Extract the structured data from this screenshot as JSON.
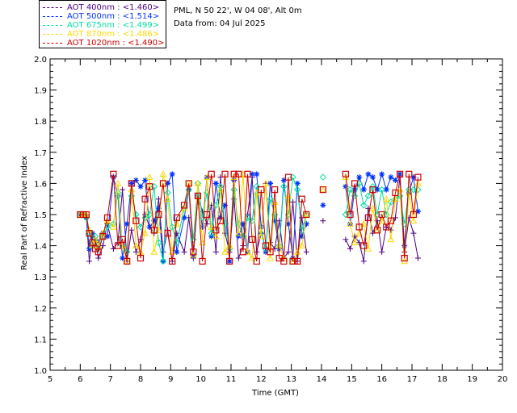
{
  "header": {
    "location": "PML, N 50 22', W 04 08', Alt 0m",
    "data_from": "Data from: 04 Jul 2025"
  },
  "legend": [
    {
      "label": "AOT  400nm : <1.460>",
      "color": "#4b0082"
    },
    {
      "label": "AOT  500nm : <1.514>",
      "color": "#0033ff"
    },
    {
      "label": "AOT  675nm : <1.499>",
      "color": "#00e0a0"
    },
    {
      "label": "AOT  870nm : <1.486>",
      "color": "#ffd700"
    },
    {
      "label": "AOT 1020nm : <1.490>",
      "color": "#cc0000"
    }
  ],
  "chart_data": {
    "type": "line",
    "xlabel": "Time (GMT)",
    "ylabel": "Real Part of Refractive Index",
    "xlim": [
      5,
      20
    ],
    "ylim": [
      1.0,
      2.0
    ],
    "xticks": [
      "5",
      "6",
      "7",
      "8",
      "9",
      "10",
      "11",
      "12",
      "13",
      "14",
      "15",
      "16",
      "17",
      "18",
      "19",
      "20"
    ],
    "yticks": [
      "1.0",
      "1.1",
      "1.2",
      "1.3",
      "1.4",
      "1.5",
      "1.6",
      "1.7",
      "1.8",
      "1.9",
      "2.0"
    ],
    "series": [
      {
        "name": "AOT  400nm",
        "color": "#4b0082",
        "marker": "plus",
        "x": [
          6.0,
          6.1,
          6.2,
          6.3,
          6.4,
          6.5,
          6.6,
          6.75,
          6.9,
          7.1,
          7.25,
          7.4,
          7.55,
          7.7,
          7.85,
          8.0,
          8.15,
          8.3,
          8.45,
          8.6,
          8.75,
          8.9,
          9.05,
          9.2,
          9.45,
          9.6,
          9.75,
          9.9,
          10.05,
          10.2,
          10.35,
          10.5,
          10.65,
          10.8,
          10.95,
          11.1,
          11.25,
          11.4,
          11.55,
          11.7,
          11.85,
          12.0,
          12.15,
          12.3,
          12.45,
          12.6,
          12.75,
          12.9,
          13.05,
          13.2,
          13.35,
          13.5,
          14.05,
          14.8,
          14.95,
          15.1,
          15.25,
          15.4,
          15.55,
          15.7,
          15.85,
          16.0,
          16.15,
          16.3,
          16.45,
          16.6,
          16.75,
          16.9,
          17.05,
          17.2
        ],
        "y": [
          1.5,
          1.5,
          1.5,
          1.35,
          1.43,
          1.42,
          1.36,
          1.4,
          1.47,
          1.39,
          1.41,
          1.58,
          1.35,
          1.45,
          1.38,
          1.42,
          1.5,
          1.46,
          1.44,
          1.55,
          1.38,
          1.45,
          1.35,
          1.44,
          1.38,
          1.49,
          1.36,
          1.56,
          1.51,
          1.47,
          1.53,
          1.38,
          1.62,
          1.44,
          1.38,
          1.55,
          1.36,
          1.4,
          1.5,
          1.62,
          1.38,
          1.44,
          1.6,
          1.41,
          1.39,
          1.48,
          1.36,
          1.38,
          1.54,
          1.35,
          1.49,
          1.38,
          1.48,
          1.42,
          1.39,
          1.43,
          1.41,
          1.35,
          1.52,
          1.44,
          1.48,
          1.38,
          1.46,
          1.45,
          1.49,
          1.62,
          1.38,
          1.49,
          1.44,
          1.36
        ]
      },
      {
        "name": "AOT  500nm",
        "color": "#0033ff",
        "marker": "asterisk",
        "x": [
          6.0,
          6.1,
          6.2,
          6.3,
          6.4,
          6.5,
          6.6,
          6.75,
          6.9,
          7.1,
          7.25,
          7.4,
          7.55,
          7.7,
          7.85,
          8.0,
          8.15,
          8.3,
          8.45,
          8.6,
          8.75,
          8.9,
          9.05,
          9.2,
          9.45,
          9.6,
          9.75,
          9.9,
          10.05,
          10.2,
          10.35,
          10.5,
          10.65,
          10.8,
          10.95,
          11.1,
          11.25,
          11.4,
          11.55,
          11.7,
          11.85,
          12.0,
          12.15,
          12.3,
          12.45,
          12.6,
          12.75,
          12.9,
          13.05,
          13.2,
          13.35,
          13.5,
          14.05,
          14.8,
          14.95,
          15.1,
          15.25,
          15.4,
          15.55,
          15.7,
          15.85,
          16.0,
          16.15,
          16.3,
          16.45,
          16.6,
          16.75,
          16.9,
          17.05,
          17.2
        ],
        "y": [
          1.5,
          1.5,
          1.49,
          1.39,
          1.44,
          1.42,
          1.41,
          1.44,
          1.43,
          1.62,
          1.56,
          1.36,
          1.47,
          1.6,
          1.61,
          1.59,
          1.61,
          1.46,
          1.48,
          1.52,
          1.35,
          1.6,
          1.63,
          1.38,
          1.49,
          1.58,
          1.37,
          1.56,
          1.46,
          1.62,
          1.43,
          1.6,
          1.49,
          1.53,
          1.35,
          1.61,
          1.43,
          1.47,
          1.38,
          1.63,
          1.63,
          1.46,
          1.38,
          1.6,
          1.48,
          1.39,
          1.61,
          1.47,
          1.36,
          1.6,
          1.43,
          1.47,
          1.53,
          1.59,
          1.47,
          1.58,
          1.62,
          1.58,
          1.63,
          1.62,
          1.58,
          1.63,
          1.58,
          1.62,
          1.61,
          1.63,
          1.4,
          1.57,
          1.62,
          1.51
        ]
      },
      {
        "name": "AOT  675nm",
        "color": "#00e0a0",
        "marker": "diamond",
        "x": [
          6.0,
          6.1,
          6.2,
          6.3,
          6.4,
          6.5,
          6.6,
          6.75,
          6.9,
          7.1,
          7.25,
          7.4,
          7.55,
          7.7,
          7.85,
          8.0,
          8.15,
          8.3,
          8.45,
          8.6,
          8.75,
          8.9,
          9.05,
          9.2,
          9.45,
          9.6,
          9.75,
          9.9,
          10.05,
          10.2,
          10.35,
          10.5,
          10.65,
          10.8,
          10.95,
          11.1,
          11.25,
          11.4,
          11.55,
          11.7,
          11.85,
          12.0,
          12.15,
          12.3,
          12.45,
          12.6,
          12.75,
          12.9,
          13.05,
          13.2,
          13.35,
          13.5,
          14.05,
          14.8,
          14.95,
          15.1,
          15.25,
          15.4,
          15.55,
          15.7,
          15.85,
          16.0,
          16.15,
          16.3,
          16.45,
          16.6,
          16.75,
          16.9,
          17.05,
          17.2
        ],
        "y": [
          1.5,
          1.5,
          1.49,
          1.44,
          1.4,
          1.43,
          1.39,
          1.43,
          1.46,
          1.47,
          1.57,
          1.4,
          1.38,
          1.56,
          1.5,
          1.46,
          1.49,
          1.5,
          1.59,
          1.41,
          1.35,
          1.57,
          1.46,
          1.41,
          1.52,
          1.58,
          1.42,
          1.6,
          1.49,
          1.57,
          1.44,
          1.53,
          1.59,
          1.47,
          1.39,
          1.58,
          1.47,
          1.43,
          1.49,
          1.48,
          1.59,
          1.44,
          1.39,
          1.55,
          1.5,
          1.4,
          1.59,
          1.5,
          1.62,
          1.58,
          1.45,
          1.5,
          1.62,
          1.5,
          1.58,
          1.56,
          1.6,
          1.53,
          1.56,
          1.59,
          1.5,
          1.58,
          1.5,
          1.54,
          1.55,
          1.56,
          1.47,
          1.58,
          1.58,
          1.58
        ]
      },
      {
        "name": "AOT  870nm",
        "color": "#ffd700",
        "marker": "triangle",
        "x": [
          6.0,
          6.1,
          6.2,
          6.3,
          6.4,
          6.5,
          6.6,
          6.75,
          6.9,
          7.1,
          7.25,
          7.4,
          7.55,
          7.7,
          7.85,
          8.0,
          8.15,
          8.3,
          8.45,
          8.6,
          8.75,
          8.9,
          9.05,
          9.2,
          9.45,
          9.6,
          9.75,
          9.9,
          10.05,
          10.2,
          10.35,
          10.5,
          10.65,
          10.8,
          10.95,
          11.1,
          11.25,
          11.4,
          11.55,
          11.7,
          11.85,
          12.0,
          12.15,
          12.3,
          12.45,
          12.6,
          12.75,
          12.9,
          13.05,
          13.2,
          13.35,
          13.5,
          14.05,
          14.8,
          14.95,
          15.1,
          15.25,
          15.4,
          15.55,
          15.7,
          15.85,
          16.0,
          16.15,
          16.3,
          16.45,
          16.6,
          16.75,
          16.9,
          17.05,
          17.2
        ],
        "y": [
          1.5,
          1.5,
          1.5,
          1.45,
          1.4,
          1.42,
          1.4,
          1.44,
          1.48,
          1.46,
          1.6,
          1.4,
          1.35,
          1.58,
          1.4,
          1.38,
          1.44,
          1.62,
          1.38,
          1.45,
          1.63,
          1.55,
          1.38,
          1.47,
          1.52,
          1.6,
          1.37,
          1.6,
          1.41,
          1.62,
          1.46,
          1.43,
          1.58,
          1.38,
          1.4,
          1.62,
          1.44,
          1.63,
          1.38,
          1.36,
          1.57,
          1.43,
          1.6,
          1.36,
          1.54,
          1.4,
          1.36,
          1.56,
          1.35,
          1.38,
          1.4,
          1.5,
          1.58,
          1.62,
          1.47,
          1.41,
          1.44,
          1.47,
          1.39,
          1.52,
          1.45,
          1.48,
          1.55,
          1.42,
          1.55,
          1.58,
          1.35,
          1.57,
          1.48,
          1.6
        ]
      },
      {
        "name": "AOT 1020nm",
        "color": "#cc0000",
        "marker": "square",
        "x": [
          6.0,
          6.1,
          6.2,
          6.3,
          6.4,
          6.5,
          6.6,
          6.75,
          6.9,
          7.1,
          7.25,
          7.4,
          7.55,
          7.7,
          7.85,
          8.0,
          8.15,
          8.3,
          8.45,
          8.6,
          8.75,
          8.9,
          9.05,
          9.2,
          9.45,
          9.6,
          9.75,
          9.9,
          10.05,
          10.2,
          10.35,
          10.5,
          10.65,
          10.8,
          10.95,
          11.1,
          11.25,
          11.4,
          11.55,
          11.7,
          11.85,
          12.0,
          12.15,
          12.3,
          12.45,
          12.6,
          12.75,
          12.9,
          13.05,
          13.2,
          13.35,
          13.5,
          14.05,
          14.8,
          14.95,
          15.1,
          15.25,
          15.4,
          15.55,
          15.7,
          15.85,
          16.0,
          16.15,
          16.3,
          16.45,
          16.6,
          16.75,
          16.9,
          17.05,
          17.2
        ],
        "y": [
          1.5,
          1.5,
          1.5,
          1.44,
          1.41,
          1.39,
          1.38,
          1.43,
          1.49,
          1.63,
          1.4,
          1.42,
          1.35,
          1.6,
          1.48,
          1.36,
          1.55,
          1.59,
          1.45,
          1.5,
          1.6,
          1.44,
          1.35,
          1.49,
          1.53,
          1.6,
          1.38,
          1.56,
          1.35,
          1.5,
          1.63,
          1.45,
          1.48,
          1.63,
          1.35,
          1.63,
          1.63,
          1.38,
          1.63,
          1.42,
          1.35,
          1.58,
          1.4,
          1.38,
          1.58,
          1.36,
          1.35,
          1.62,
          1.35,
          1.35,
          1.55,
          1.5,
          1.58,
          1.63,
          1.5,
          1.6,
          1.46,
          1.4,
          1.49,
          1.58,
          1.45,
          1.5,
          1.46,
          1.48,
          1.57,
          1.63,
          1.36,
          1.63,
          1.5,
          1.62
        ]
      }
    ]
  }
}
